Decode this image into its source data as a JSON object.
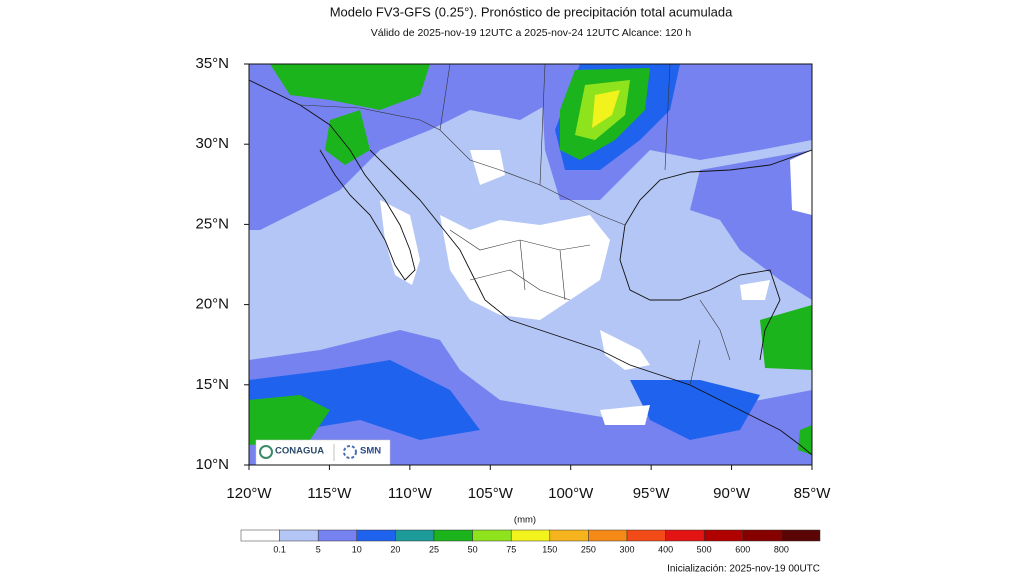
{
  "header": {
    "title": "Modelo FV3-GFS (0.25°). Pronóstico de precipitación total acumulada",
    "subtitle": "Válido de 2025-nov-19 12UTC a 2025-nov-24 12UTC    Alcance: 120 h"
  },
  "map": {
    "lat_ticks": [
      {
        "value": 35,
        "label": "35°N"
      },
      {
        "value": 30,
        "label": "30°N"
      },
      {
        "value": 25,
        "label": "25°N"
      },
      {
        "value": 20,
        "label": "20°N"
      },
      {
        "value": 15,
        "label": "15°N"
      },
      {
        "value": 10,
        "label": "10°N"
      }
    ],
    "lon_ticks": [
      {
        "value": -120,
        "label": "120°W"
      },
      {
        "value": -115,
        "label": "115°W"
      },
      {
        "value": -110,
        "label": "110°W"
      },
      {
        "value": -105,
        "label": "105°W"
      },
      {
        "value": -100,
        "label": "100°W"
      },
      {
        "value": -95,
        "label": "95°W"
      },
      {
        "value": -90,
        "label": "90°W"
      },
      {
        "value": -85,
        "label": "85°W"
      }
    ],
    "logos": [
      "CONAGUA",
      "SMN"
    ]
  },
  "colorbar": {
    "units": "(mm)",
    "levels": [
      0.1,
      5,
      10,
      20,
      25,
      50,
      75,
      150,
      250,
      300,
      400,
      500,
      600,
      800
    ],
    "colors": [
      "#ffffff",
      "#b4c6f5",
      "#7682ef",
      "#1f62ee",
      "#1d9a9a",
      "#1cb41c",
      "#8fe31c",
      "#f2f21c",
      "#f6b41c",
      "#f58a16",
      "#f24b18",
      "#e31414",
      "#b00000",
      "#860000",
      "#5a0505"
    ]
  },
  "footer": {
    "init": "Inicialización: 2025-nov-19 00UTC"
  }
}
